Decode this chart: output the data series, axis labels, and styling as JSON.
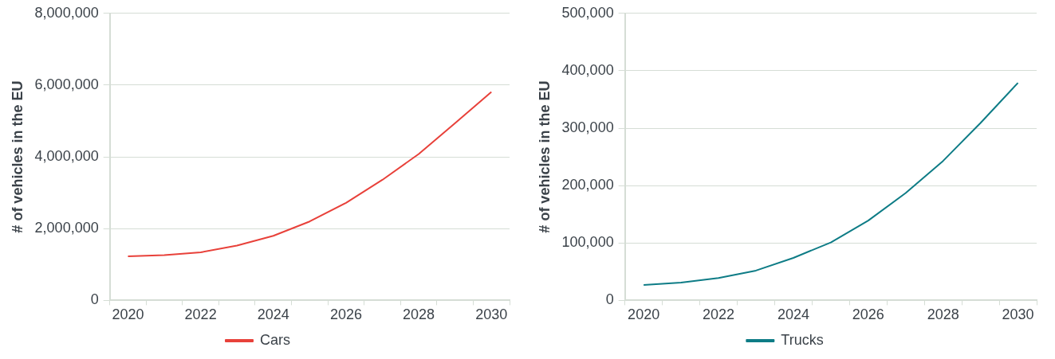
{
  "chart_data": [
    {
      "type": "line",
      "ylabel": "# of vehicles in the EU",
      "categories": [
        "2020",
        null,
        "2022",
        null,
        "2024",
        null,
        "2026",
        null,
        "2028",
        null,
        "2030"
      ],
      "series": [
        {
          "name": "Cars",
          "color": "#e8413a",
          "values": [
            1230000,
            1260000,
            1340000,
            1530000,
            1800000,
            2200000,
            2720000,
            3360000,
            4080000,
            4940000,
            5810000
          ]
        }
      ],
      "ylim": [
        0,
        8000000
      ],
      "yticks": [
        {
          "value": 0,
          "label": "0"
        },
        {
          "value": 2000000,
          "label": "2,000,000"
        },
        {
          "value": 4000000,
          "label": "4,000,000"
        },
        {
          "value": 6000000,
          "label": "6,000,000"
        },
        {
          "value": 8000000,
          "label": "8,000,000"
        }
      ],
      "grid": "y",
      "legend": "bottom"
    },
    {
      "type": "line",
      "ylabel": "# of vehicles in the EU",
      "categories": [
        "2020",
        null,
        "2022",
        null,
        "2024",
        null,
        "2026",
        null,
        "2028",
        null,
        "2030"
      ],
      "series": [
        {
          "name": "Trucks",
          "color": "#0e7c86",
          "values": [
            27000,
            31000,
            39000,
            52000,
            74000,
            101000,
            139000,
            187000,
            243000,
            309000,
            379000
          ]
        }
      ],
      "ylim": [
        0,
        500000
      ],
      "yticks": [
        {
          "value": 0,
          "label": "0"
        },
        {
          "value": 100000,
          "label": "100,000"
        },
        {
          "value": 200000,
          "label": "200,000"
        },
        {
          "value": 300000,
          "label": "300,000"
        },
        {
          "value": 400000,
          "label": "400,000"
        },
        {
          "value": 500000,
          "label": "500,000"
        }
      ],
      "grid": "y",
      "legend": "bottom"
    }
  ]
}
